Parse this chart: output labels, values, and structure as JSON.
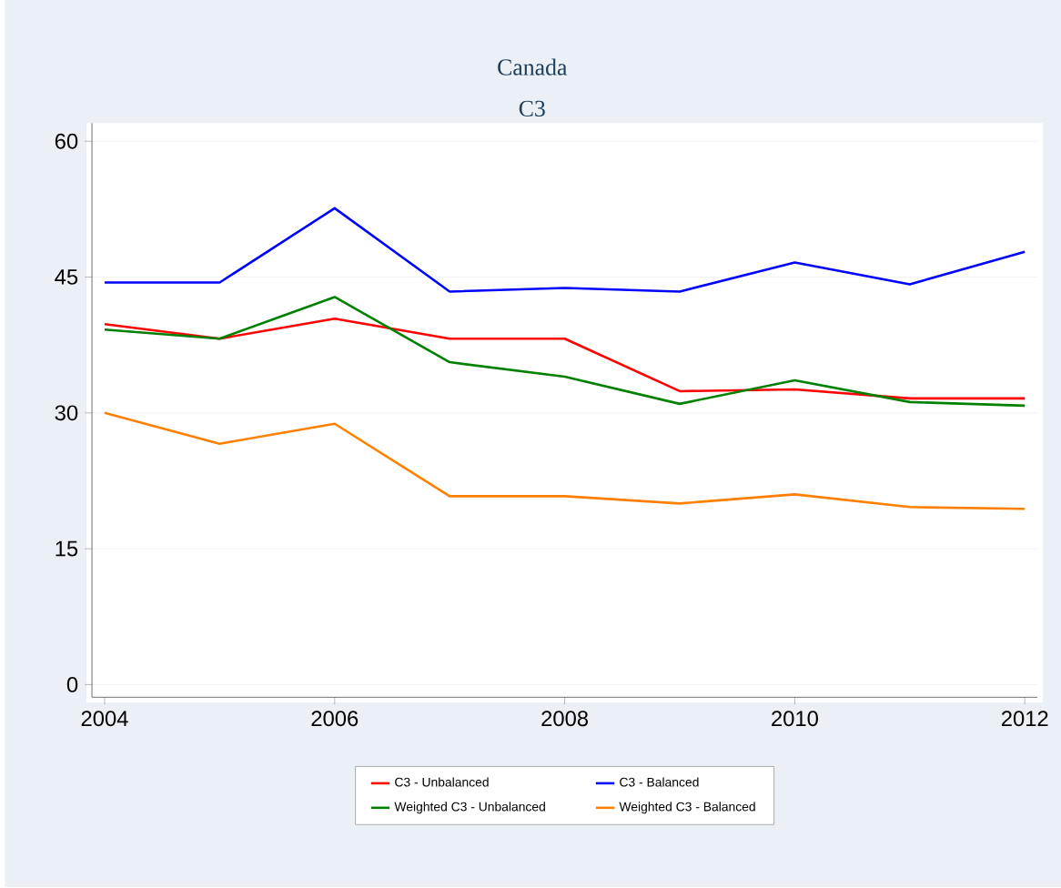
{
  "chart_data": {
    "type": "line",
    "title": "Canada",
    "subtitle": "C3",
    "x": [
      2004,
      2005,
      2006,
      2007,
      2008,
      2009,
      2010,
      2011,
      2012
    ],
    "series": [
      {
        "name": "C3 - Unbalanced",
        "color": "#ff0000",
        "values": [
          39.8,
          38.2,
          40.4,
          38.2,
          38.2,
          32.4,
          32.6,
          31.6,
          31.6
        ]
      },
      {
        "name": "C3 - Balanced",
        "color": "#0000ff",
        "values": [
          44.4,
          44.4,
          52.6,
          43.4,
          43.8,
          43.4,
          46.6,
          44.2,
          47.8
        ]
      },
      {
        "name": "Weighted C3 - Unbalanced",
        "color": "#008000",
        "values": [
          39.2,
          38.2,
          42.8,
          35.6,
          34.0,
          31.0,
          33.6,
          31.2,
          30.8
        ]
      },
      {
        "name": "Weighted C3 - Balanced",
        "color": "#ff8000",
        "values": [
          30.0,
          26.6,
          28.8,
          20.8,
          20.8,
          20.0,
          21.0,
          19.6,
          19.4
        ]
      }
    ],
    "xlim": [
      2003.89,
      2012.11
    ],
    "ylim": [
      -1.4,
      62
    ],
    "xticks": [
      2004,
      2006,
      2008,
      2010,
      2012
    ],
    "yticks": [
      0,
      15,
      30,
      45,
      60
    ],
    "grid": "y",
    "legend": "bottom"
  }
}
